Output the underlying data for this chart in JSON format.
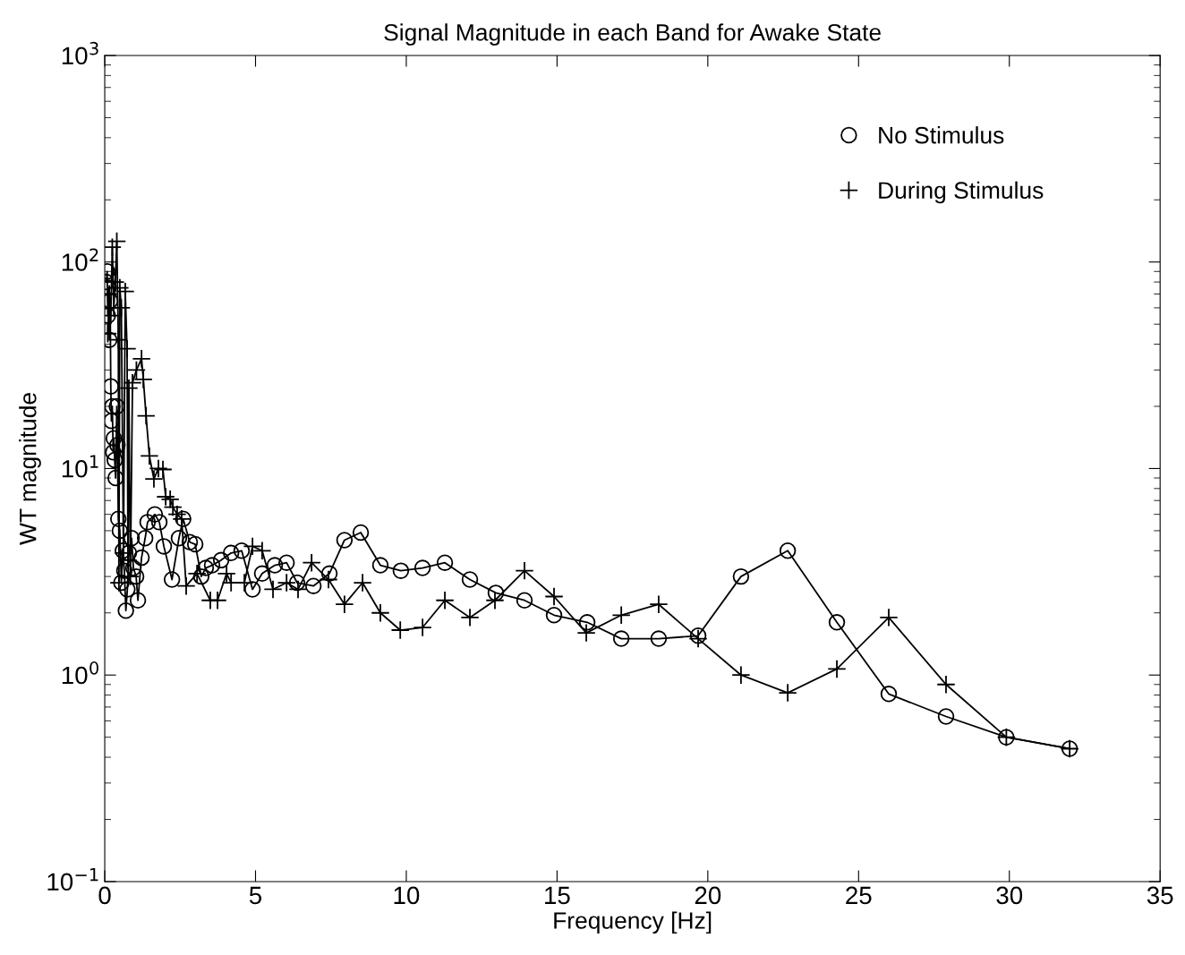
{
  "chart_data": {
    "type": "line",
    "title": "Signal Magnitude in each Band for Awake State",
    "xlabel": "Frequency [Hz]",
    "ylabel": "WT magnitude",
    "log": "y",
    "xlim": [
      0,
      35
    ],
    "ylim": [
      0.1,
      1000
    ],
    "xticks": [
      0,
      5,
      10,
      15,
      20,
      25,
      30,
      35
    ],
    "yticks": [
      {
        "value": 0.1,
        "label": "10$^{−1}$"
      },
      {
        "value": 1,
        "label": "10$^{0}$"
      },
      {
        "value": 10,
        "label": "10$^{1}$"
      },
      {
        "value": 100,
        "label": "10$^{2}$"
      },
      {
        "value": 1000,
        "label": "10$^{3}$"
      }
    ],
    "grid": false,
    "legend": "top right",
    "series": [
      {
        "name": "No Stimulus",
        "color": "#000000",
        "marker": "circle",
        "x": [
          0.05,
          0.08,
          0.1,
          0.13,
          0.15,
          0.18,
          0.2,
          0.22,
          0.25,
          0.28,
          0.3,
          0.33,
          0.36,
          0.4,
          0.42,
          0.45,
          0.5,
          0.55,
          0.6,
          0.65,
          0.7,
          0.75,
          0.8,
          0.89,
          0.95,
          1.04,
          1.1,
          1.22,
          1.34,
          1.42,
          1.66,
          1.81,
          1.96,
          2.23,
          2.46,
          2.6,
          2.82,
          3.0,
          3.2,
          3.35,
          3.56,
          3.86,
          4.19,
          4.54,
          4.9,
          5.22,
          5.64,
          6.03,
          6.38,
          6.92,
          7.45,
          7.95,
          8.49,
          9.14,
          9.82,
          10.54,
          11.28,
          12.11,
          12.97,
          13.92,
          14.9,
          16.0,
          17.13,
          18.37,
          19.68,
          21.1,
          22.65,
          24.28,
          26.0,
          27.9,
          29.9,
          32.0
        ],
        "values": [
          80,
          90,
          55,
          75,
          42,
          65,
          25,
          17,
          20,
          12,
          14,
          11,
          9,
          20,
          13,
          5.7,
          5.0,
          2.8,
          4.0,
          3.2,
          2.05,
          2.6,
          3.9,
          4.6,
          3.3,
          3.0,
          2.3,
          3.7,
          4.6,
          5.5,
          6.0,
          5.5,
          4.2,
          2.9,
          4.6,
          5.7,
          4.4,
          4.3,
          3.0,
          3.3,
          3.4,
          3.6,
          3.9,
          4.0,
          2.6,
          3.1,
          3.4,
          3.5,
          2.8,
          2.7,
          3.1,
          4.5,
          4.9,
          3.4,
          3.2,
          3.3,
          3.5,
          2.9,
          2.5,
          2.3,
          1.95,
          1.8,
          1.5,
          1.5,
          1.55,
          3.0,
          4.0,
          1.8,
          0.81,
          0.63,
          0.5,
          0.44
        ]
      },
      {
        "name": "During Stimulus",
        "color": "#000000",
        "marker": "cross",
        "x": [
          0.1,
          0.15,
          0.2,
          0.25,
          0.3,
          0.35,
          0.4,
          0.45,
          0.47,
          0.5,
          0.55,
          0.62,
          0.68,
          0.74,
          0.77,
          0.8,
          0.85,
          0.92,
          1.05,
          1.22,
          1.28,
          1.37,
          1.48,
          1.63,
          1.78,
          1.93,
          2.02,
          2.17,
          2.26,
          2.4,
          2.55,
          2.7,
          3.06,
          3.5,
          3.74,
          4.04,
          4.19,
          4.63,
          4.9,
          5.22,
          5.58,
          6.03,
          6.41,
          6.86,
          7.42,
          7.95,
          8.55,
          9.14,
          9.8,
          10.54,
          11.28,
          12.11,
          12.94,
          13.92,
          14.9,
          15.97,
          17.13,
          18.37,
          19.68,
          21.1,
          22.65,
          24.28,
          26.0,
          27.9,
          29.9,
          32.0
        ],
        "values": [
          45,
          70,
          55,
          118,
          60,
          80,
          126,
          42,
          2.8,
          75,
          60,
          3.9,
          72,
          38,
          3.6,
          24.5,
          3.0,
          26,
          30,
          34,
          27,
          18,
          11.5,
          8.9,
          10,
          9.9,
          7.3,
          7.1,
          6.5,
          6.0,
          5.7,
          2.7,
          3.1,
          2.3,
          2.3,
          3.1,
          2.8,
          2.8,
          4.2,
          4.0,
          2.6,
          2.8,
          2.6,
          3.5,
          2.9,
          2.2,
          2.8,
          2.0,
          1.65,
          1.7,
          2.3,
          1.9,
          2.3,
          3.2,
          2.4,
          1.6,
          1.95,
          2.2,
          1.5,
          1.0,
          0.82,
          1.07,
          1.9,
          0.9,
          0.5,
          0.44
        ]
      }
    ]
  }
}
